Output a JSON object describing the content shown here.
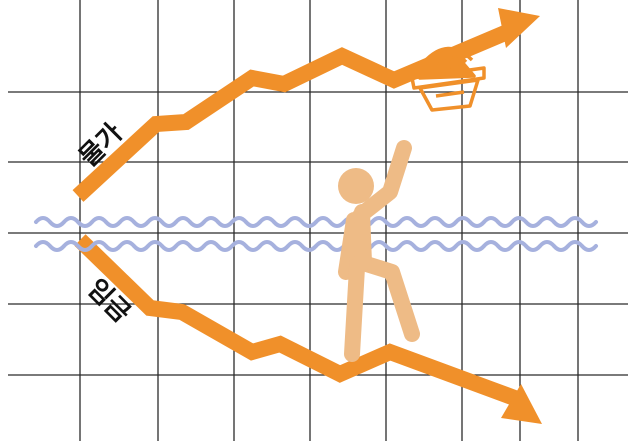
{
  "labels": {
    "rising_line": "물가",
    "falling_line": "임금"
  },
  "colors": {
    "background": "#ffffff",
    "grid": "#2b2b2b",
    "arrow": "#f0902a",
    "person": "#eebb86",
    "waves": "#a6b1de",
    "basket": "#f0902a"
  },
  "icons": {
    "person": "drowning-person-icon",
    "basket": "shopping-basket-icon",
    "waves": "water-waves"
  }
}
